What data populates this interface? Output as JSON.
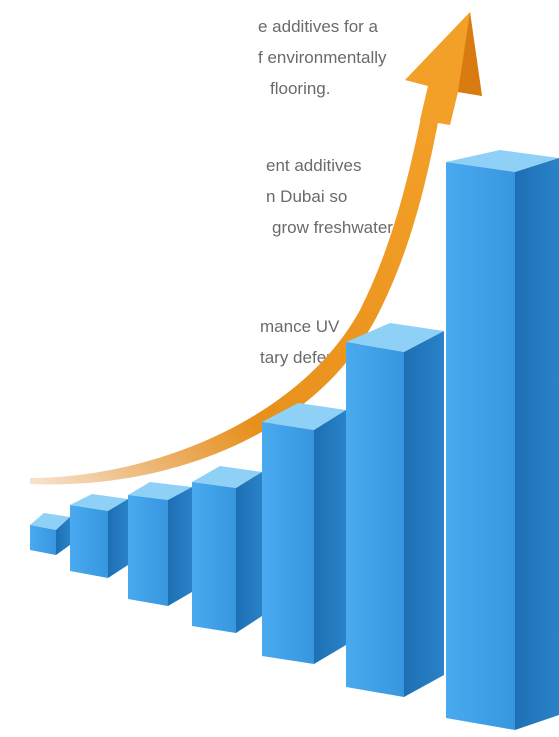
{
  "paragraphs": [
    {
      "lines": [
        "e additives for a",
        "f environmentally",
        "flooring."
      ]
    },
    {
      "lines": [
        "ent additives",
        "n Dubai so",
        "grow freshwater"
      ]
    },
    {
      "lines": [
        "mance UV",
        "tary defence"
      ]
    }
  ],
  "illustration": {
    "subject": "rising blue bar chart with orange upward arrow",
    "colors": {
      "bar_front": "#3fa0e6",
      "bar_side": "#1f72b8",
      "bar_top": "#8fd0f6",
      "arrow": "#f3a028",
      "arrow_dark": "#d87c12"
    }
  }
}
